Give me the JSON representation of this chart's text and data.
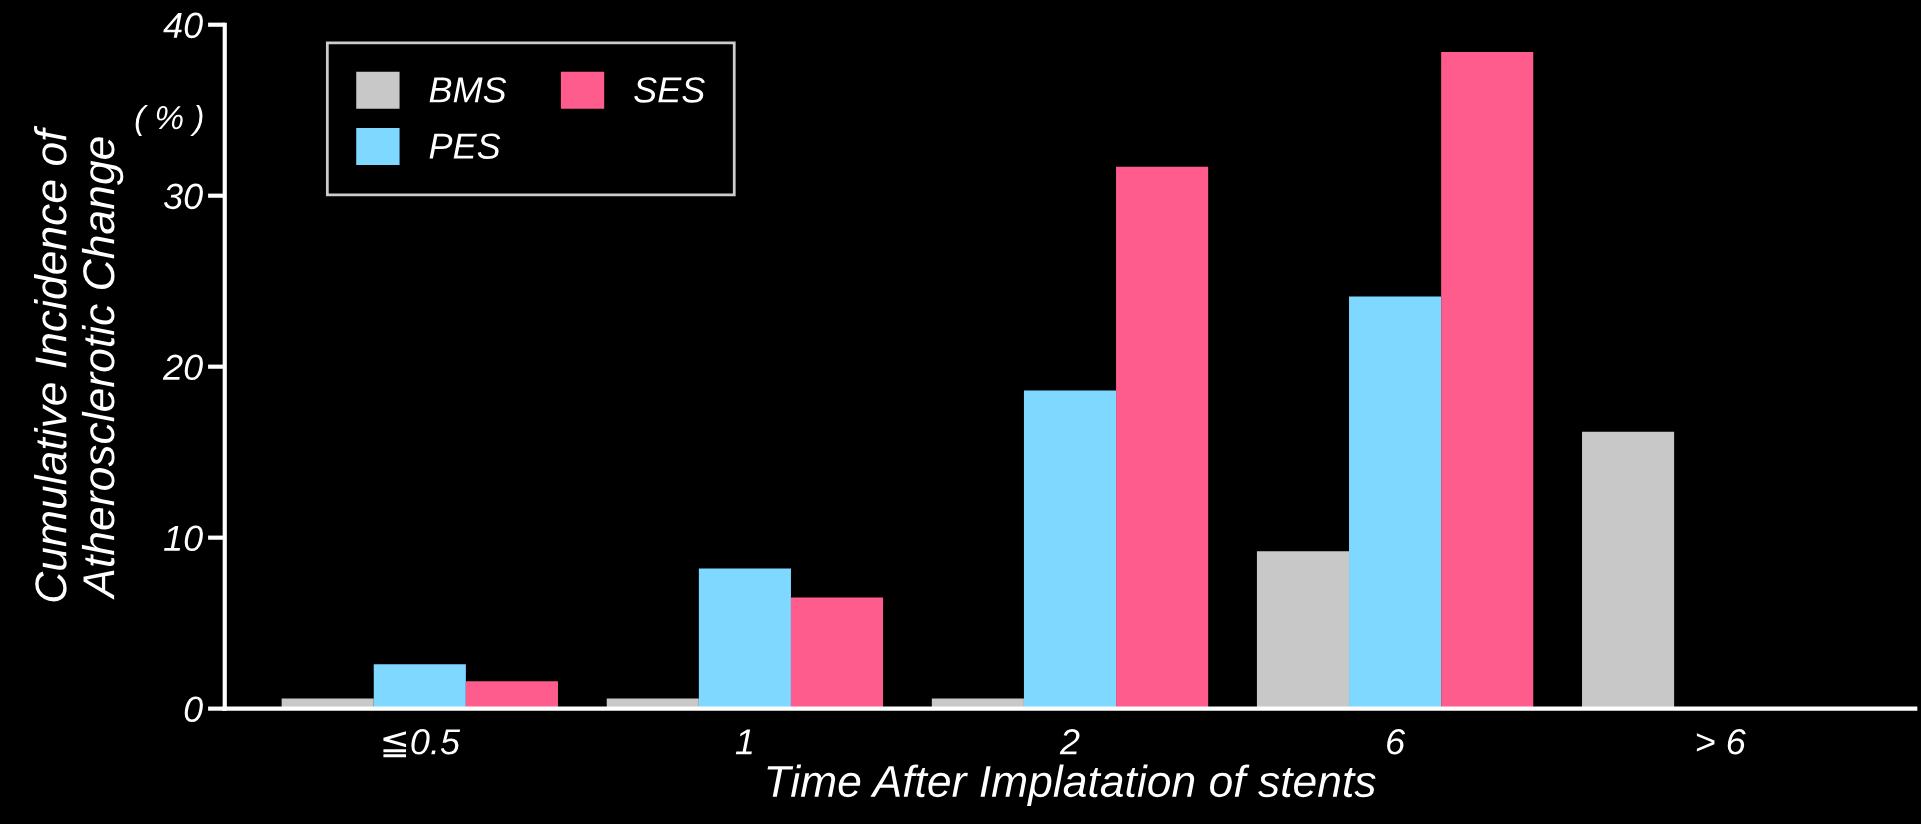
{
  "chart_data": {
    "type": "bar",
    "xlabel": "Time After Implatation of stents",
    "ylabel": "Cumulative Incidence of\nAtherosclerotic Change",
    "annotations": [
      "( % )"
    ],
    "categories": [
      "≦0.5",
      "1",
      "2",
      "6",
      "> 6"
    ],
    "series": [
      {
        "name": "BMS",
        "color": "#c8c8c8",
        "values": [
          0.6,
          0.6,
          0.6,
          9.2,
          16.2
        ]
      },
      {
        "name": "PES",
        "color": "#7fd8ff",
        "values": [
          2.6,
          8.2,
          18.6,
          24.1,
          null
        ]
      },
      {
        "name": "SES",
        "color": "#ff5c8e",
        "values": [
          1.6,
          6.5,
          31.7,
          38.4,
          null
        ]
      }
    ],
    "ylim": [
      0,
      40
    ],
    "yticks": [
      0,
      10,
      20,
      30,
      40
    ],
    "grid": false,
    "legend": "top left"
  }
}
